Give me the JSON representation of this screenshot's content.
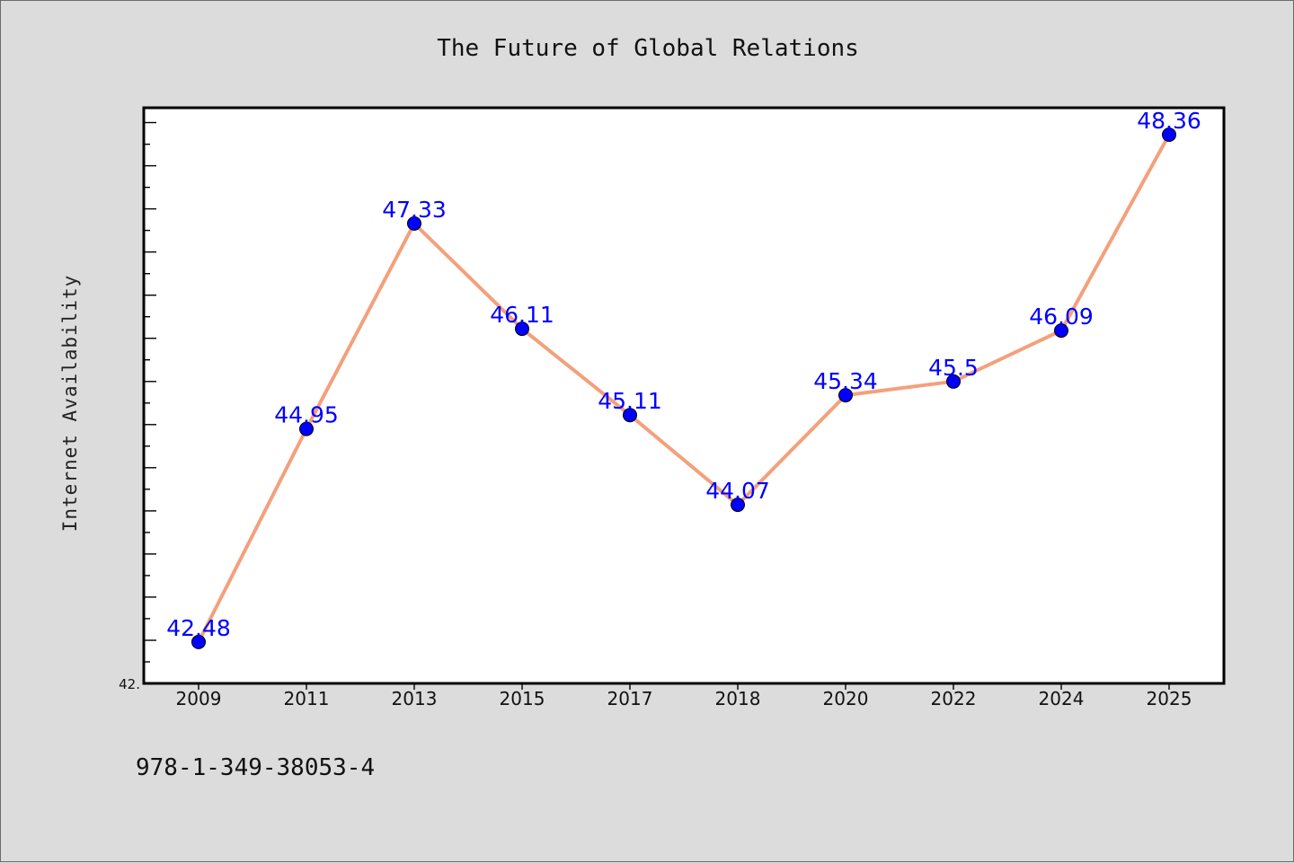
{
  "chart_data": {
    "type": "line",
    "title": "The Future of Global Relations",
    "xlabel": "",
    "ylabel": "Internet Availability",
    "categories": [
      "2009",
      "2011",
      "2013",
      "2015",
      "2017",
      "2018",
      "2020",
      "2022",
      "2024",
      "2025"
    ],
    "series": [
      {
        "values": [
          42.48,
          44.95,
          47.33,
          46.11,
          45.11,
          44.07,
          45.34,
          45.5,
          46.09,
          48.36
        ],
        "labels": [
          "42.48",
          "44.95",
          "47.33",
          "46.11",
          "45.11",
          "44.07",
          "45.34",
          "45.5",
          "46.09",
          "48.36"
        ],
        "line_color": "#f4a07c",
        "marker_color": "#0000ff"
      }
    ],
    "ylim": [
      42.0,
      49.0
    ],
    "ytick_labels": [
      "42."
    ],
    "grid": false,
    "legend": "none"
  },
  "footer": {
    "isbn": "978-1-349-38053-4"
  },
  "colors": {
    "background": "#dcdcdc",
    "plot_background": "#ffffff",
    "line": "#f4a07c",
    "marker": "#0000ff",
    "data_label": "#0000ff"
  }
}
